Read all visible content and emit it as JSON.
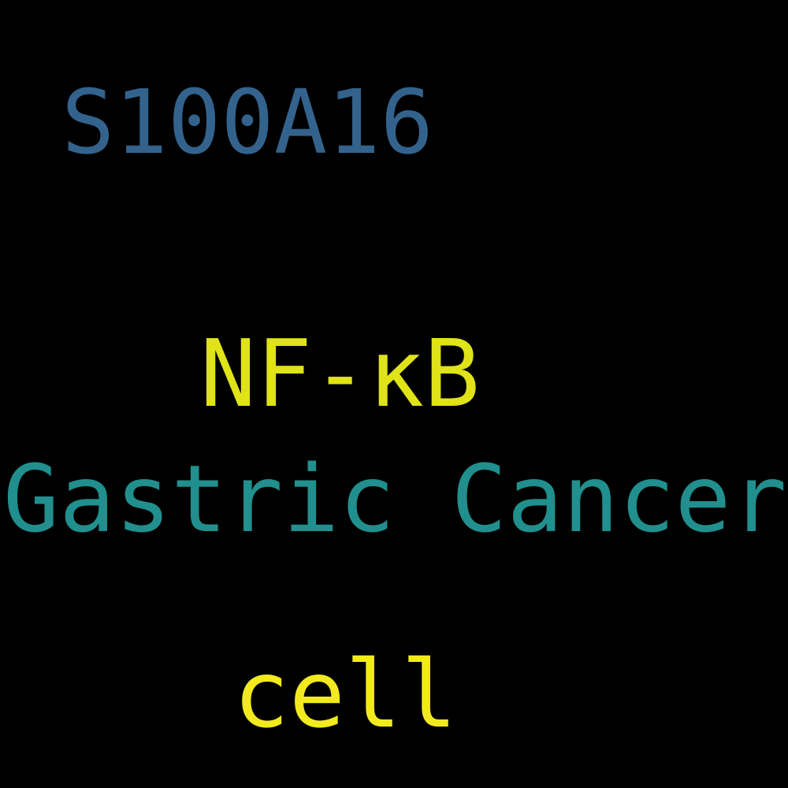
{
  "words": [
    {
      "text": "S100A16",
      "color": "#33638d"
    },
    {
      "text": "NF-κB",
      "color": "#dfe318"
    },
    {
      "text": "Gastric Cancer",
      "color": "#218f8d"
    },
    {
      "text": "cell",
      "color": "#f2ea1e"
    }
  ],
  "background": "#000000"
}
